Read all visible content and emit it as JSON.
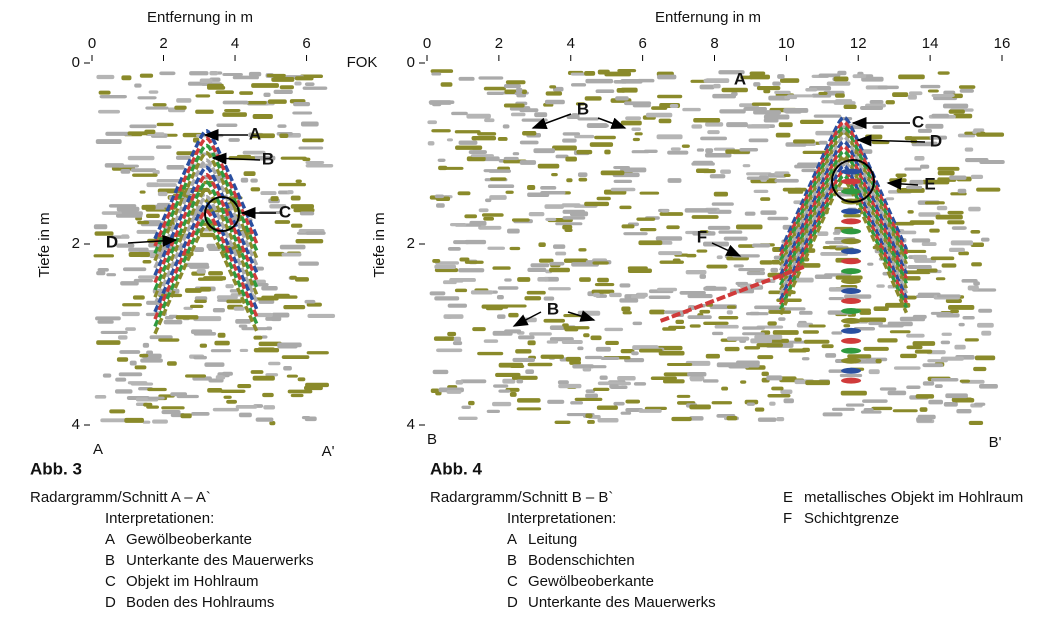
{
  "figures": [
    {
      "xlabel": "Entfernung in m",
      "ylabel": "Tiefe in m",
      "xlim": [
        0,
        6.6
      ],
      "ylim": [
        0,
        4
      ],
      "xticks": [
        0,
        2,
        4,
        6
      ],
      "yticks": [
        0,
        2,
        4
      ],
      "surface_label": "FOK",
      "start_label": "A",
      "end_label": "A'",
      "annotations": [
        "A",
        "B",
        "C",
        "D"
      ],
      "figure_label": "Abb. 3",
      "caption": "Radargramm/Schnitt A – A`",
      "legend_title": "Interpretationen:",
      "legend": [
        {
          "key": "A",
          "text": "Gewölbeoberkante"
        },
        {
          "key": "B",
          "text": "Unterkante des Mauerwerks"
        },
        {
          "key": "C",
          "text": "Objekt im Hohlraum"
        },
        {
          "key": "D",
          "text": "Boden des Hohlraums"
        }
      ]
    },
    {
      "xlabel": "Entfernung in m",
      "ylabel": "Tiefe in m",
      "xlim": [
        0,
        16
      ],
      "ylim": [
        0,
        4
      ],
      "xticks": [
        0,
        2,
        4,
        6,
        8,
        10,
        12,
        14,
        16
      ],
      "yticks": [
        0,
        2,
        4
      ],
      "start_label": "B",
      "end_label": "B'",
      "annotations": [
        "A",
        "B",
        "B",
        "C",
        "D",
        "E",
        "F"
      ],
      "figure_label": "Abb. 4",
      "caption": "Radargramm/Schnitt B – B`",
      "legend_title": "Interpretationen:",
      "legend": [
        {
          "key": "A",
          "text": "Leitung"
        },
        {
          "key": "B",
          "text": "Bodenschichten"
        },
        {
          "key": "C",
          "text": "Gewölbeoberkante"
        },
        {
          "key": "D",
          "text": "Unterkante des Mauerwerks"
        },
        {
          "key": "E",
          "text": "metallisches Objekt im Hohlraum"
        },
        {
          "key": "F",
          "text": "Schichtgrenze"
        }
      ]
    }
  ]
}
